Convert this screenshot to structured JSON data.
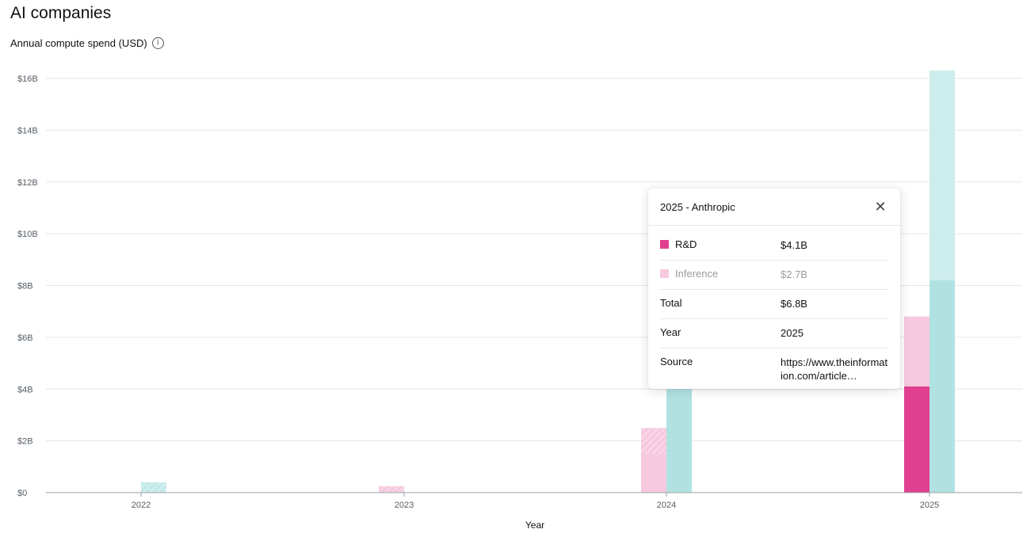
{
  "header": {
    "title": "AI companies",
    "subtitle": "Annual compute spend (USD)",
    "info_icon_glyph": "i"
  },
  "colors": {
    "rd": "#e0408f",
    "inference": "#f6c9df",
    "other_company_light": "#cdecec",
    "other_company_dark": "#b1e2e2",
    "gridline": "#e5e5e5",
    "axis": "#9aa0a6"
  },
  "chart_data": {
    "type": "bar",
    "title": "",
    "xlabel": "Year",
    "ylabel": "",
    "ylim": [
      0,
      16
    ],
    "y_unit": "billion USD",
    "y_ticks": [
      "$0",
      "$2B",
      "$4B",
      "$6B",
      "$8B",
      "$10B",
      "$12B",
      "$14B",
      "$16B"
    ],
    "categories": [
      "2022",
      "2023",
      "2024",
      "2025"
    ],
    "bars": [
      {
        "category": "2022",
        "slot": "right",
        "segments": [
          {
            "kind": "teal-hatched",
            "value": 0.4
          }
        ]
      },
      {
        "category": "2023",
        "slot": "left",
        "segments": [
          {
            "kind": "pink-hatched",
            "value": 0.25
          }
        ]
      },
      {
        "category": "2024",
        "slot": "left",
        "segments": [
          {
            "kind": "inference",
            "value": 1.5
          },
          {
            "kind": "pink-hatched",
            "value": 1.0
          }
        ]
      },
      {
        "category": "2024",
        "slot": "right",
        "segments": [
          {
            "kind": "teal",
            "value": 4.0
          }
        ]
      },
      {
        "category": "2025",
        "slot": "left",
        "segments": [
          {
            "kind": "rd",
            "value": 4.1
          },
          {
            "kind": "inference",
            "value": 2.7
          }
        ]
      },
      {
        "category": "2025",
        "slot": "right",
        "segments": [
          {
            "kind": "teal",
            "value": 8.2
          },
          {
            "kind": "teal-light",
            "value": 8.1
          }
        ]
      }
    ]
  },
  "tooltip": {
    "title": "2025 - Anthropic",
    "close_glyph": "✕",
    "rows": [
      {
        "label": "R&D",
        "value": "$4.1B"
      },
      {
        "label": "Inference",
        "value": "$2.7B"
      },
      {
        "label": "Total",
        "value": "$6.8B"
      },
      {
        "label": "Year",
        "value": "2025"
      },
      {
        "label": "Source",
        "value": "https://www.theinformation.com/article…"
      }
    ]
  }
}
